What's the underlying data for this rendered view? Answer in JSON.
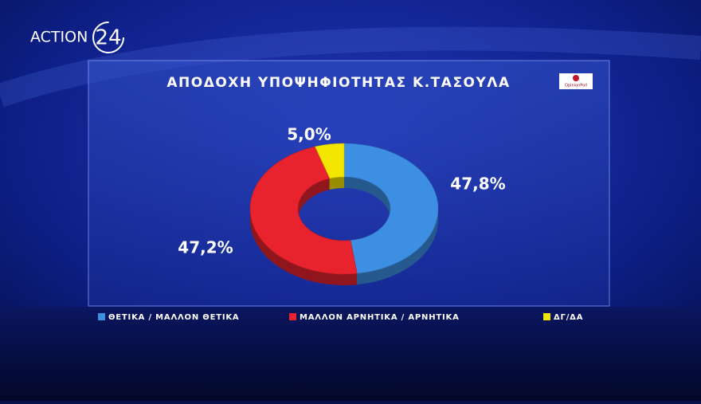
{
  "brand": {
    "name": "ACTION",
    "number": "24"
  },
  "chart_data": {
    "type": "pie",
    "donut": true,
    "title": "ΑΠΟΔΟΧΗ ΥΠΟΨΗΦΙΟΤΗΤΑΣ Κ.ΤΑΣΟΥΛΑ",
    "source": "OpinionPoll",
    "series": [
      {
        "name": "ΘΕΤΙΚΑ / ΜΑΛΛΟΝ ΘΕΤΙΚΑ",
        "color": "#3d8fe3"
      },
      {
        "name": "ΜΑΛΛΟΝ ΑΡΝΗΤΙΚΑ / ΑΡΝΗΤΙΚΑ",
        "color": "#e8232e"
      },
      {
        "name": "ΔΓ/ΔΑ",
        "color": "#f2e500"
      }
    ],
    "values": [
      47.8,
      47.2,
      5.0
    ],
    "value_labels": [
      "47,8%",
      "47,2%",
      "5,0%"
    ]
  }
}
